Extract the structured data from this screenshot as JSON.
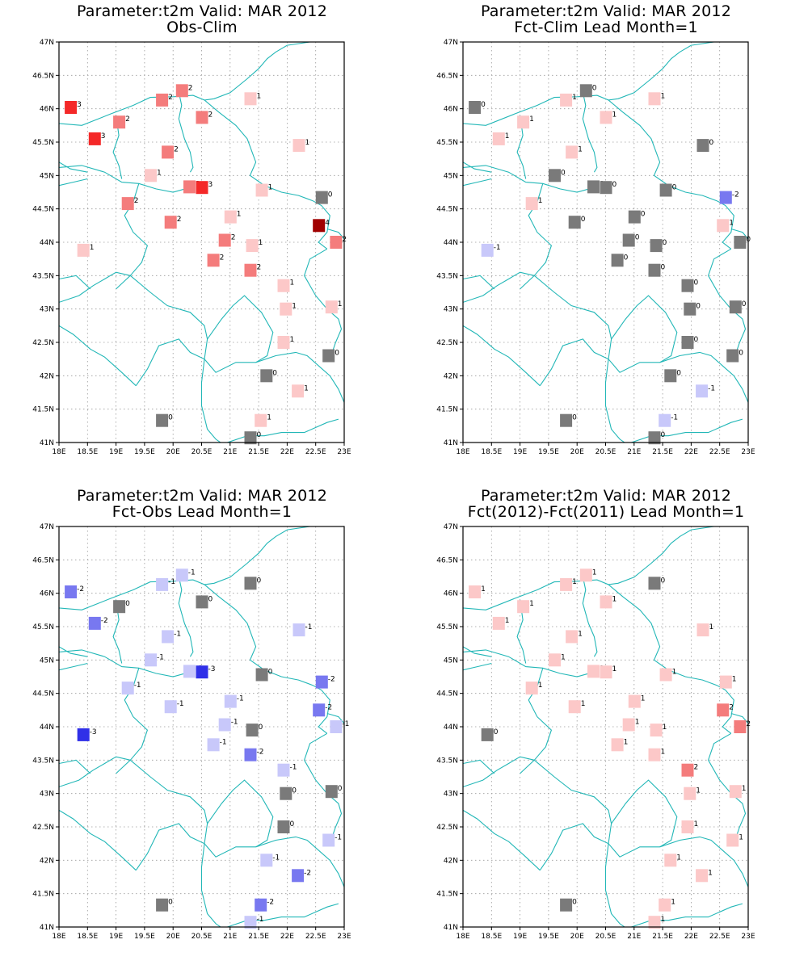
{
  "colors": {
    "coast": "#22b7b7",
    "grid": "#9a9a9a",
    "zero": "#7a7a7a",
    "pos1": "#fcc8c8",
    "pos2": "#f47c7c",
    "pos3": "#f42828",
    "pos4": "#a00000",
    "neg1": "#c8c8fa",
    "neg2": "#7878f0",
    "neg3": "#3030e8"
  },
  "axes": {
    "lon_ticks": [
      "18E",
      "18.5E",
      "19E",
      "19.5E",
      "20E",
      "20.5E",
      "21E",
      "21.5E",
      "22E",
      "22.5E",
      "23E"
    ],
    "lat_ticks": [
      "41N",
      "41.5N",
      "42N",
      "42.5N",
      "43N",
      "43.5N",
      "44N",
      "44.5N",
      "45N",
      "45.5N",
      "46N",
      "46.5N",
      "47N"
    ],
    "lon_range": [
      18,
      23
    ],
    "lat_range": [
      41,
      47
    ]
  },
  "stations": [
    {
      "lon": 18.2,
      "lat": 46.02
    },
    {
      "lon": 18.62,
      "lat": 45.55
    },
    {
      "lon": 19.05,
      "lat": 45.8
    },
    {
      "lon": 19.8,
      "lat": 46.13
    },
    {
      "lon": 20.15,
      "lat": 46.27
    },
    {
      "lon": 20.5,
      "lat": 45.87
    },
    {
      "lon": 21.35,
      "lat": 46.15
    },
    {
      "lon": 19.9,
      "lat": 45.35
    },
    {
      "lon": 22.2,
      "lat": 45.45
    },
    {
      "lon": 19.6,
      "lat": 45.0
    },
    {
      "lon": 20.28,
      "lat": 44.83
    },
    {
      "lon": 20.5,
      "lat": 44.82
    },
    {
      "lon": 21.55,
      "lat": 44.78
    },
    {
      "lon": 22.6,
      "lat": 44.67
    },
    {
      "lon": 19.2,
      "lat": 44.58
    },
    {
      "lon": 21.0,
      "lat": 44.38
    },
    {
      "lon": 19.95,
      "lat": 44.3
    },
    {
      "lon": 22.55,
      "lat": 44.25
    },
    {
      "lon": 20.9,
      "lat": 44.03
    },
    {
      "lon": 22.85,
      "lat": 44.0
    },
    {
      "lon": 18.42,
      "lat": 43.88
    },
    {
      "lon": 21.38,
      "lat": 43.95
    },
    {
      "lon": 20.7,
      "lat": 43.73
    },
    {
      "lon": 21.35,
      "lat": 43.58
    },
    {
      "lon": 21.93,
      "lat": 43.35
    },
    {
      "lon": 21.97,
      "lat": 43.0
    },
    {
      "lon": 22.77,
      "lat": 43.03
    },
    {
      "lon": 21.93,
      "lat": 42.5
    },
    {
      "lon": 22.72,
      "lat": 42.3
    },
    {
      "lon": 21.63,
      "lat": 42.0
    },
    {
      "lon": 22.18,
      "lat": 41.77
    },
    {
      "lon": 19.8,
      "lat": 41.33
    },
    {
      "lon": 21.53,
      "lat": 41.33
    },
    {
      "lon": 21.35,
      "lat": 41.07
    }
  ],
  "panels": [
    {
      "title_line1": "Parameter:t2m Valid: MAR 2012",
      "title_line2": "Obs-Clim",
      "values": [
        "3",
        "3",
        "2",
        "2",
        "2",
        "2",
        "1",
        "2",
        "1",
        "1",
        "2",
        "3",
        "1",
        "0",
        "2",
        "1",
        "2",
        "4",
        "2",
        "2",
        "1",
        "1",
        "2",
        "2",
        "1",
        "1",
        "1",
        "1",
        "0",
        "0",
        "1",
        "0",
        "1",
        "0"
      ]
    },
    {
      "title_line1": "Parameter:t2m Valid: MAR 2012",
      "title_line2": "Fct-Clim Lead Month=1",
      "values": [
        "0",
        "1",
        "1",
        "1",
        "0",
        "1",
        "1",
        "1",
        "0",
        "0",
        "0",
        "0",
        "0",
        "-2",
        "1",
        "0",
        "0",
        "1",
        "0",
        "0",
        "-1",
        "0",
        "0",
        "0",
        "0",
        "0",
        "0",
        "0",
        "0",
        "0",
        "-1",
        "0",
        "-1",
        "0"
      ]
    },
    {
      "title_line1": "Parameter:t2m Valid: MAR 2012",
      "title_line2": "Fct-Obs Lead Month=1",
      "values": [
        "-2",
        "-2",
        "0",
        "-1",
        "-1",
        "0",
        "0",
        "-1",
        "-1",
        "-1",
        "-1",
        "-3",
        "0",
        "-2",
        "-1",
        "-1",
        "-1",
        "-2",
        "-1",
        "-1",
        "-3",
        "0",
        "-1",
        "-2",
        "-1",
        "0",
        "0",
        "0",
        "-1",
        "-1",
        "-2",
        "0",
        "-2",
        "-1"
      ]
    },
    {
      "title_line1": "Parameter:t2m Valid: MAR 2012",
      "title_line2": "Fct(2012)-Fct(2011) Lead Month=1",
      "values": [
        "1",
        "1",
        "1",
        "1",
        "1",
        "1",
        "0",
        "1",
        "1",
        "1",
        "1",
        "1",
        "1",
        "1",
        "1",
        "1",
        "1",
        "2",
        "1",
        "2",
        "0",
        "1",
        "1",
        "1",
        "2",
        "1",
        "1",
        "1",
        "1",
        "1",
        "1",
        "0",
        "1",
        "1"
      ]
    }
  ]
}
